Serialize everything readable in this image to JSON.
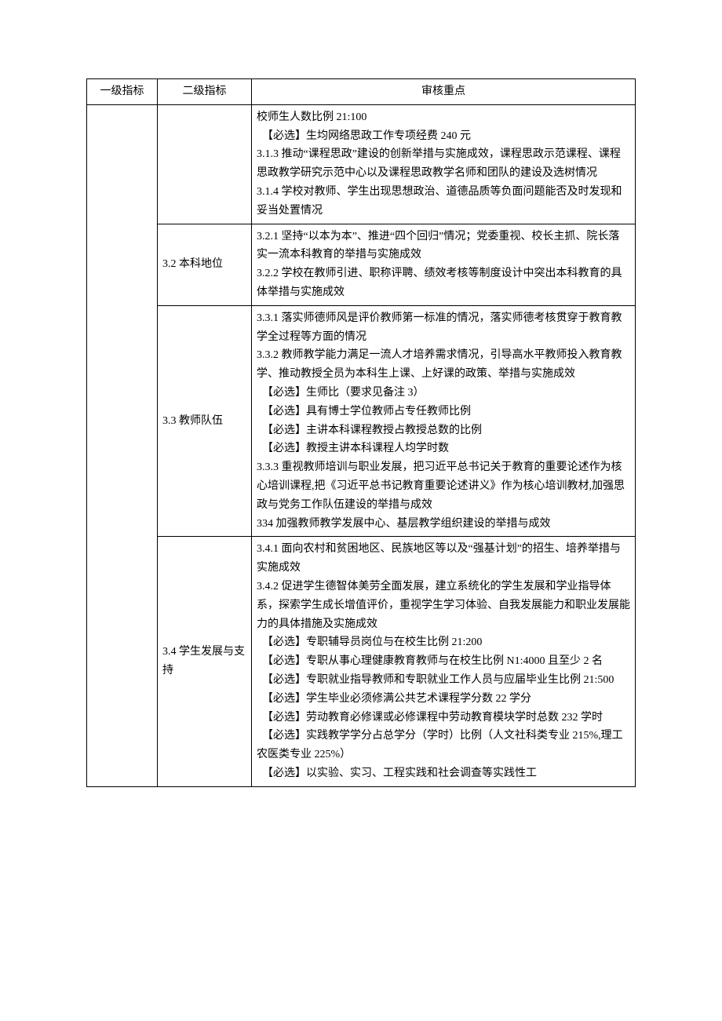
{
  "header": {
    "col1": "一级指标",
    "col2": "二级指标",
    "col3": "审核重点"
  },
  "col1_merged": "",
  "row1": {
    "col2": "",
    "lines": [
      "校师生人数比例 21:100",
      "　【必选】生均网络思政工作专项经费 240 元",
      "3.1.3 推动“课程思政”建设的创新举措与实施成效，课程思政示范课程、课程思政教学研究示范中心以及课程思政教学名师和团队的建设及选树情况",
      "3.1.4 学校对教师、学生出现思想政治、道德品质等负面问题能否及时发现和妥当处置情况"
    ]
  },
  "row2": {
    "col2": "3.2 本科地位",
    "lines": [
      "3.2.1 坚持“以本为本”、推进“四个回归”情况；党委重视、校长主抓、院长落实一流本科教育的举措与实施成效",
      "3.2.2 学校在教师引进、职称评聘、绩效考核等制度设计中突出本科教育的具体举措与实施成效"
    ]
  },
  "row3": {
    "col2": "3.3 教师队伍",
    "lines": [
      "3.3.1 落实师德师风是评价教师第一标准的情况，落实师德考核贯穿于教育教学全过程等方面的情况",
      "3.3.2 教师教学能力满足一流人才培养需求情况，引导高水平教师投入教育教学、推动教授全员为本科生上课、上好课的政策、举措与实施成效",
      "　【必选】生师比（要求见备注 3）",
      "　【必选】具有博士学位教师占专任教师比例",
      "　【必选】主讲本科课程教授占教授总数的比例",
      "　【必选】教授主讲本科课程人均学时数",
      "",
      "3.3.3 重视教师培训与职业发展，把习近平总书记关于教育的重要论述作为核心培训课程,把《习近平总书记教育重要论述讲义》作为核心培训教材,加强思政与党务工作队伍建设的举措与成效",
      "",
      "334 加强教师教学发展中心、基层教学组织建设的举措与成效"
    ]
  },
  "row4": {
    "col2": "3.4 学生发展与支持",
    "lines": [
      "3.4.1 面向农村和贫困地区、民族地区等以及“强基计划”的招生、培养举措与实施成效",
      "",
      "",
      "3.4.2 促进学生德智体美劳全面发展，建立系统化的学生发展和学业指导体系，探索学生成长增值评价，重视学生学习体验、自我发展能力和职业发展能力的具体措施及实施成效",
      "　【必选】专职辅导员岗位与在校生比例 21:200",
      "　【必选】专职从事心理健康教育教师与在校生比例 N1:4000 且至少 2 名",
      "　【必选】专职就业指导教师和专职就业工作人员与应届毕业生比例 21:500",
      "　【必选】学生毕业必须修满公共艺术课程学分数 22 学分",
      "　【必选】劳动教育必修课或必修课程中劳动教育模块学时总数 232 学时",
      "　【必选】实践教学学分占总学分（学时）比例（人文社科类专业 215%,理工农医类专业 225%）",
      "　【必选】以实验、实习、工程实践和社会调查等实践性工"
    ]
  }
}
